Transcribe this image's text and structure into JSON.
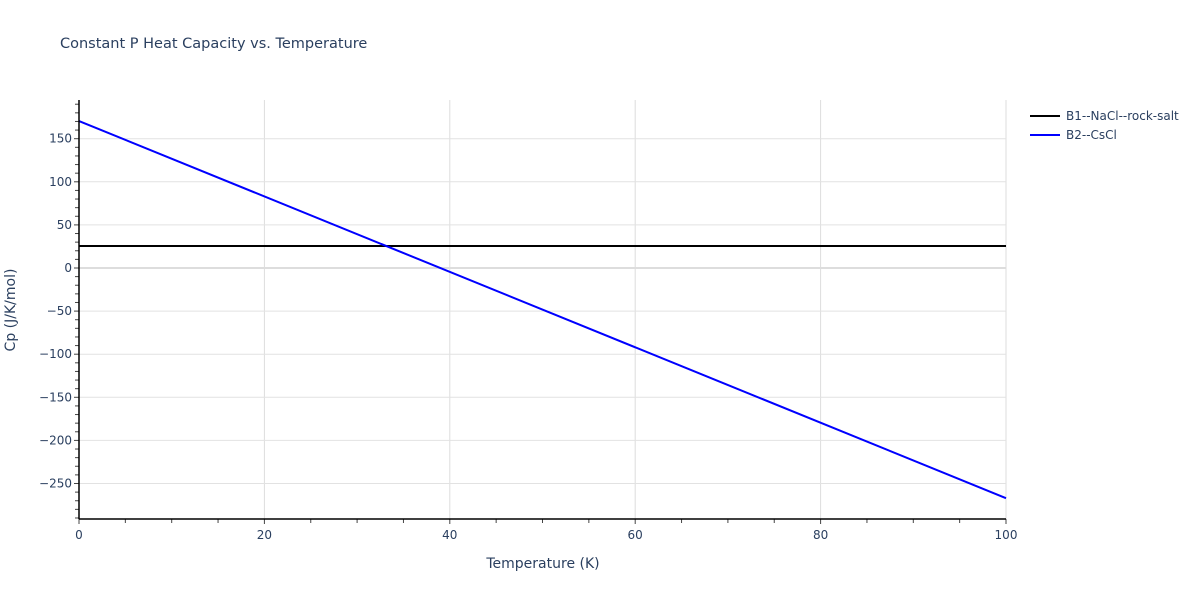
{
  "chart_data": {
    "type": "line",
    "title": "Constant P Heat Capacity vs. Temperature",
    "xlabel": "Temperature (K)",
    "ylabel": "Cp (J/K/mol)",
    "xlim": [
      0,
      100
    ],
    "ylim": [
      -291,
      195
    ],
    "x_ticks": [
      0,
      20,
      40,
      60,
      80,
      100
    ],
    "y_ticks": [
      -250,
      -200,
      -150,
      -100,
      -50,
      0,
      50,
      100,
      150
    ],
    "grid": true,
    "legend_position": "top-right outside",
    "series": [
      {
        "name": "B1--NaCl--rock-salt",
        "color": "#000000",
        "x": [
          0,
          100
        ],
        "values": [
          25.5,
          25.5
        ]
      },
      {
        "name": "B2--CsCl",
        "color": "#0000ff",
        "x": [
          0,
          100
        ],
        "values": [
          170.5,
          -267
        ]
      }
    ]
  },
  "labels": {
    "title": "Constant P Heat Capacity vs. Temperature",
    "xlabel": "Temperature (K)",
    "ylabel": "Cp (J/K/mol)",
    "x_ticks": [
      "0",
      "20",
      "40",
      "60",
      "80",
      "100"
    ],
    "y_ticks": [
      "150",
      "100",
      "50",
      "0",
      "−50",
      "−100",
      "−150",
      "−200",
      "−250"
    ],
    "legend": [
      "B1--NaCl--rock-salt",
      "B2--CsCl"
    ]
  }
}
